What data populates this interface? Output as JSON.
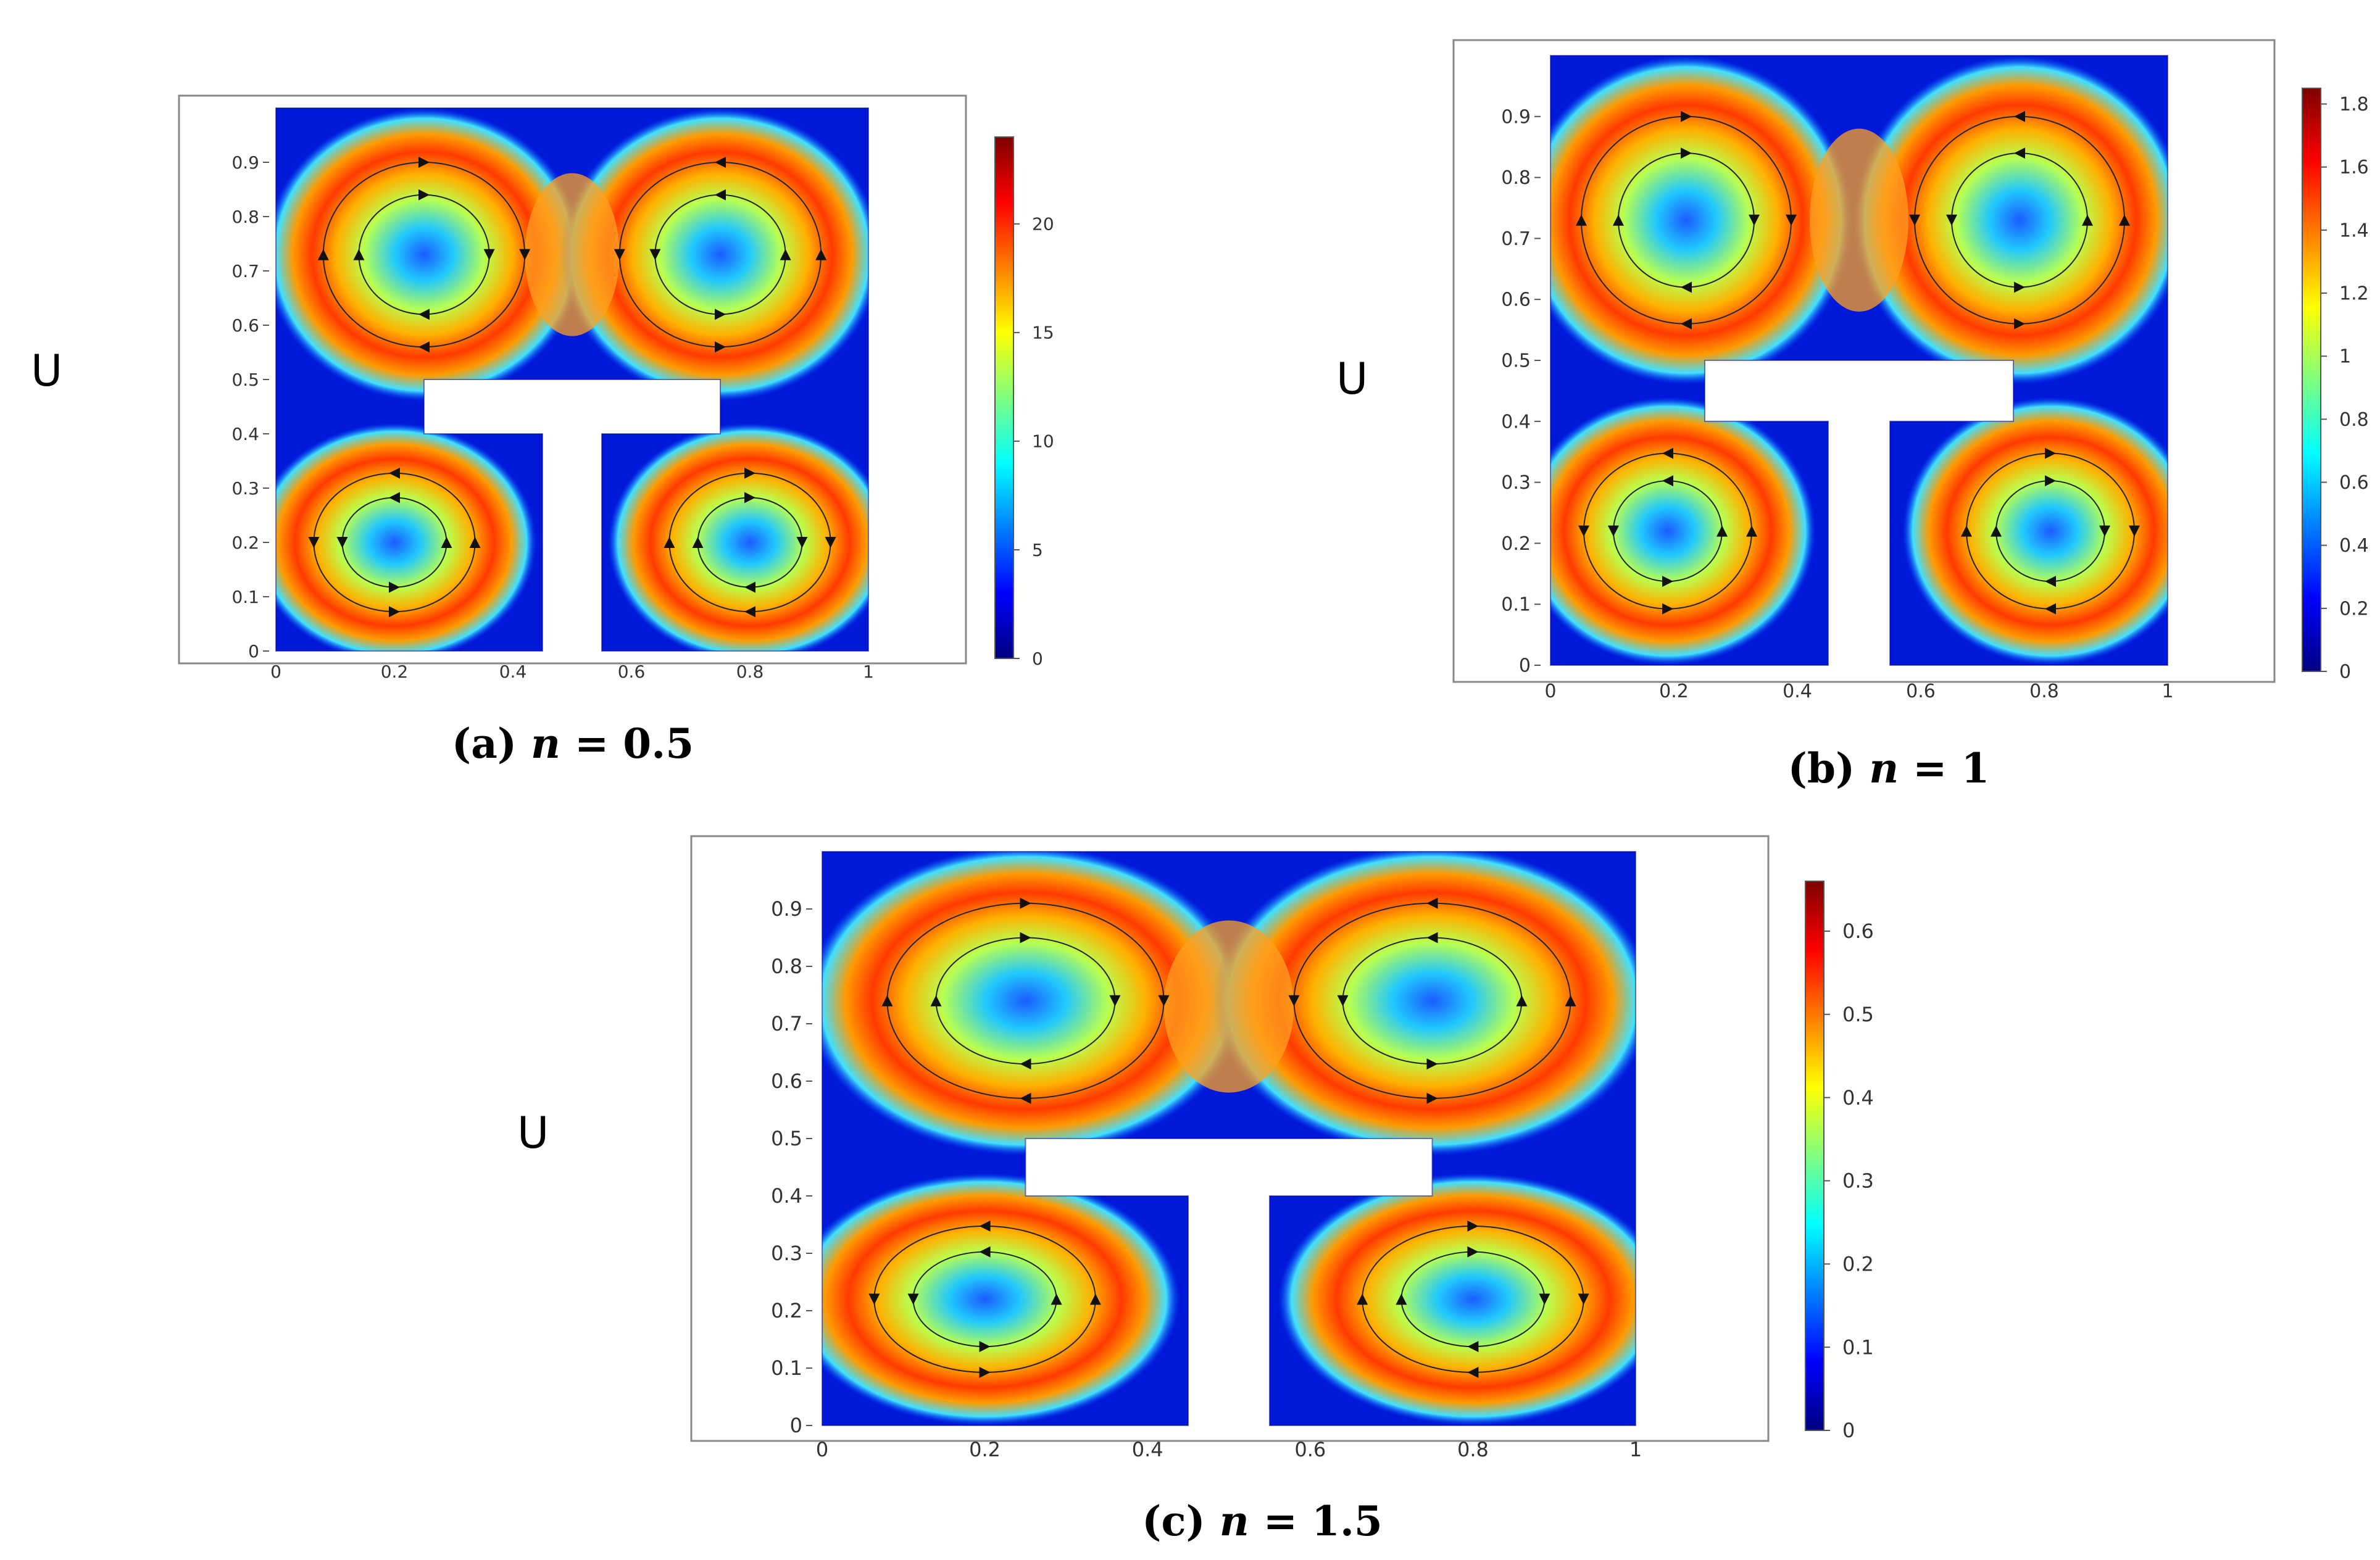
{
  "chart_data": [
    {
      "type": "heatmap",
      "panel_id": "a",
      "caption": "(a) n = 0.5",
      "caption_parts": {
        "prefix": "(a) ",
        "var": "n",
        "suffix": " = 0.5"
      },
      "side_label": "U",
      "xlim": [
        0,
        1
      ],
      "ylim": [
        0,
        1
      ],
      "x_ticks": [
        "0",
        "0.2",
        "0.4",
        "0.6",
        "0.8",
        "1"
      ],
      "x_tick_values": [
        0,
        0.2,
        0.4,
        0.6,
        0.8,
        1
      ],
      "y_ticks": [
        "0",
        "0.1",
        "0.2",
        "0.3",
        "0.4",
        "0.5",
        "0.6",
        "0.7",
        "0.8",
        "0.9"
      ],
      "y_tick_values": [
        0,
        0.1,
        0.2,
        0.3,
        0.4,
        0.5,
        0.6,
        0.7,
        0.8,
        0.9
      ],
      "colorbar": {
        "min": 0,
        "max": 24,
        "ticks": [
          "0",
          "5",
          "10",
          "15",
          "20"
        ],
        "tick_values": [
          0,
          5,
          10,
          15,
          20
        ]
      },
      "domain": {
        "outer": [
          0,
          0,
          1,
          1
        ],
        "tbar": [
          0.25,
          0.4,
          0.75,
          0.5
        ],
        "stem": [
          0.45,
          0,
          0.55,
          0.4
        ]
      },
      "vortex_centers": [
        [
          0.25,
          0.73
        ],
        [
          0.75,
          0.73
        ],
        [
          0.2,
          0.2
        ],
        [
          0.8,
          0.2
        ]
      ],
      "peak_fraction": 0.85
    },
    {
      "type": "heatmap",
      "panel_id": "b",
      "caption": "(b) n = 1",
      "caption_parts": {
        "prefix": "(b) ",
        "var": "n",
        "suffix": " = 1"
      },
      "side_label": "U",
      "xlim": [
        0,
        1
      ],
      "ylim": [
        0,
        1
      ],
      "x_ticks": [
        "0",
        "0.2",
        "0.4",
        "0.6",
        "0.8",
        "1"
      ],
      "x_tick_values": [
        0,
        0.2,
        0.4,
        0.6,
        0.8,
        1
      ],
      "y_ticks": [
        "0",
        "0.1",
        "0.2",
        "0.3",
        "0.4",
        "0.5",
        "0.6",
        "0.7",
        "0.8",
        "0.9"
      ],
      "y_tick_values": [
        0,
        0.1,
        0.2,
        0.3,
        0.4,
        0.5,
        0.6,
        0.7,
        0.8,
        0.9
      ],
      "colorbar": {
        "min": 0,
        "max": 1.85,
        "ticks": [
          "0",
          "0.2",
          "0.4",
          "0.6",
          "0.8",
          "1",
          "1.2",
          "1.4",
          "1.6",
          "1.8"
        ],
        "tick_values": [
          0,
          0.2,
          0.4,
          0.6,
          0.8,
          1,
          1.2,
          1.4,
          1.6,
          1.8
        ]
      },
      "domain": {
        "outer": [
          0,
          0,
          1,
          1
        ],
        "tbar": [
          0.25,
          0.4,
          0.75,
          0.5
        ],
        "stem": [
          0.45,
          0,
          0.55,
          0.4
        ]
      },
      "vortex_centers": [
        [
          0.22,
          0.73
        ],
        [
          0.76,
          0.73
        ],
        [
          0.19,
          0.22
        ],
        [
          0.81,
          0.22
        ]
      ],
      "peak_fraction": 0.8
    },
    {
      "type": "heatmap",
      "panel_id": "c",
      "caption": "(c) n = 1.5",
      "caption_parts": {
        "prefix": "(c) ",
        "var": "n",
        "suffix": " = 1.5"
      },
      "side_label": "U",
      "xlim": [
        0,
        1
      ],
      "ylim": [
        0,
        1
      ],
      "x_ticks": [
        "0",
        "0.2",
        "0.4",
        "0.6",
        "0.8",
        "1"
      ],
      "x_tick_values": [
        0,
        0.2,
        0.4,
        0.6,
        0.8,
        1
      ],
      "y_ticks": [
        "0",
        "0.1",
        "0.2",
        "0.3",
        "0.4",
        "0.5",
        "0.6",
        "0.7",
        "0.8",
        "0.9"
      ],
      "y_tick_values": [
        0,
        0.1,
        0.2,
        0.3,
        0.4,
        0.5,
        0.6,
        0.7,
        0.8,
        0.9
      ],
      "colorbar": {
        "min": 0,
        "max": 0.66,
        "ticks": [
          "0",
          "0.1",
          "0.2",
          "0.3",
          "0.4",
          "0.5",
          "0.6"
        ],
        "tick_values": [
          0,
          0.1,
          0.2,
          0.3,
          0.4,
          0.5,
          0.6
        ]
      },
      "domain": {
        "outer": [
          0,
          0,
          1,
          1
        ],
        "tbar": [
          0.25,
          0.4,
          0.75,
          0.5
        ],
        "stem": [
          0.45,
          0,
          0.55,
          0.4
        ]
      },
      "vortex_centers": [
        [
          0.25,
          0.74
        ],
        [
          0.75,
          0.74
        ],
        [
          0.2,
          0.22
        ],
        [
          0.8,
          0.22
        ]
      ],
      "peak_fraction": 0.8
    }
  ],
  "colormap": [
    "#00007f",
    "#0000ff",
    "#007fff",
    "#00ffff",
    "#7fff7f",
    "#ffff00",
    "#ff7f00",
    "#ff0000",
    "#7f0000"
  ]
}
